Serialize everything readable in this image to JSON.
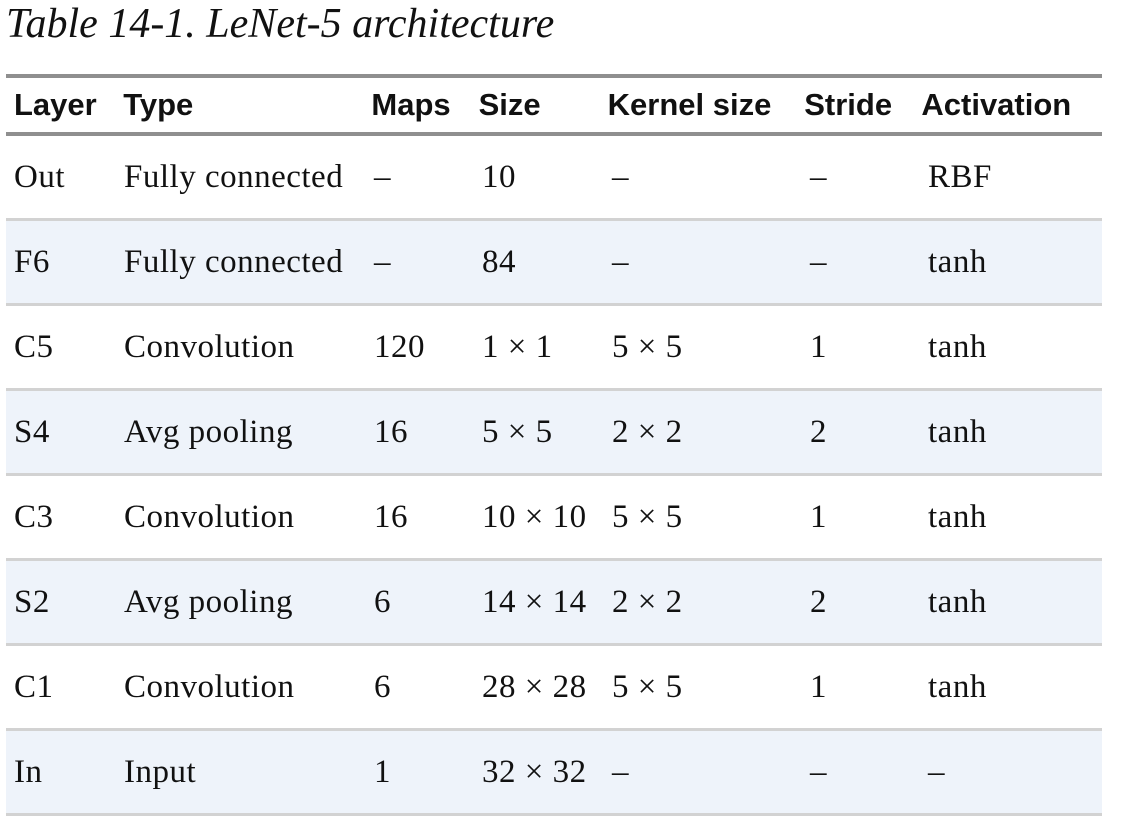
{
  "caption": "Table 14-1. LeNet-5 architecture",
  "table": {
    "headers": [
      "Layer",
      "Type",
      "Maps",
      "Size",
      "Kernel size",
      "Stride",
      "Activation"
    ],
    "rows": [
      [
        "Out",
        "Fully connected",
        "–",
        "10",
        "–",
        "–",
        "RBF"
      ],
      [
        "F6",
        "Fully connected",
        "–",
        "84",
        "–",
        "–",
        "tanh"
      ],
      [
        "C5",
        "Convolution",
        "120",
        "1 × 1",
        "5 × 5",
        "1",
        "tanh"
      ],
      [
        "S4",
        "Avg pooling",
        "16",
        "5 × 5",
        "2 × 2",
        "2",
        "tanh"
      ],
      [
        "C3",
        "Convolution",
        "16",
        "10 × 10",
        "5 × 5",
        "1",
        "tanh"
      ],
      [
        "S2",
        "Avg pooling",
        "6",
        "14 × 14",
        "2 × 2",
        "2",
        "tanh"
      ],
      [
        "C1",
        "Convolution",
        "6",
        "28 × 28",
        "5 × 5",
        "1",
        "tanh"
      ],
      [
        "In",
        "Input",
        "1",
        "32 × 32",
        "–",
        "–",
        "–"
      ]
    ]
  },
  "colors": {
    "rule": "#8f8f8f",
    "row_divider": "#d2d2d2",
    "alt_row_bg": "#eef3fa",
    "text": "#111111"
  }
}
